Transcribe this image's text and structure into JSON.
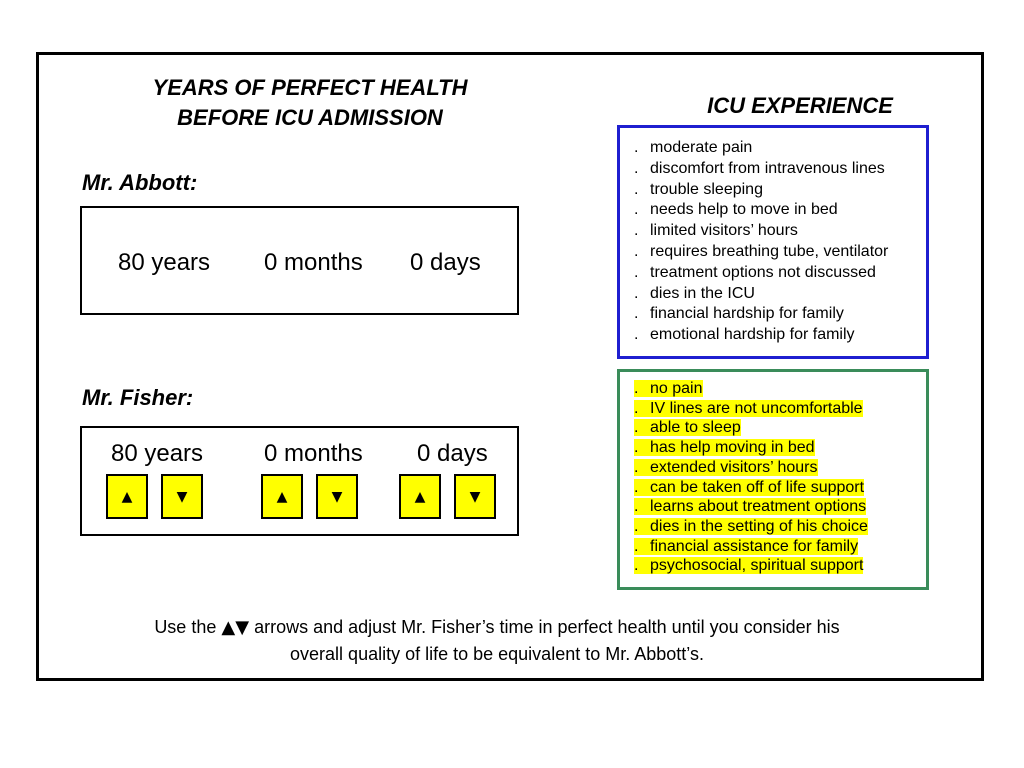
{
  "headings": {
    "left_line1": "YEARS OF PERFECT HEALTH",
    "left_line2": "BEFORE ICU ADMISSION",
    "right": "ICU EXPERIENCE"
  },
  "abbott": {
    "label": "Mr. Abbott:",
    "years": "80 years",
    "months": "0 months",
    "days": "0 days"
  },
  "fisher": {
    "label": "Mr. Fisher:",
    "years": "80 years",
    "months": "0 months",
    "days": "0 days",
    "up_symbol": "▲",
    "down_symbol": "▼"
  },
  "icu_experience": {
    "bullet": ".",
    "items": [
      "moderate pain",
      "discomfort from intravenous lines",
      "trouble sleeping",
      "needs help to move in bed",
      "limited visitors’ hours",
      "requires breathing tube, ventilator",
      "treatment options not discussed",
      "dies in the ICU",
      "financial hardship for family",
      "emotional hardship for family"
    ],
    "border_color": "#1f1fd0"
  },
  "improved_experience": {
    "bullet": ".",
    "items": [
      "no pain",
      "IV lines are not uncomfortable",
      "able to sleep",
      "has help moving in bed",
      "extended visitors’ hours",
      "can be taken off of life support",
      "learns about treatment options",
      "dies in the setting of his choice",
      "financial assistance for family",
      "psychosocial, spiritual support"
    ],
    "border_color": "#3a8c5a",
    "highlight_color": "#ffff00"
  },
  "instructions": {
    "prefix": "Use the",
    "arrows": "▲▼",
    "line1_rest": "arrows and adjust Mr. Fisher’s time in perfect health until you consider his",
    "line2": "overall quality of life to be equivalent to Mr. Abbott’s."
  }
}
